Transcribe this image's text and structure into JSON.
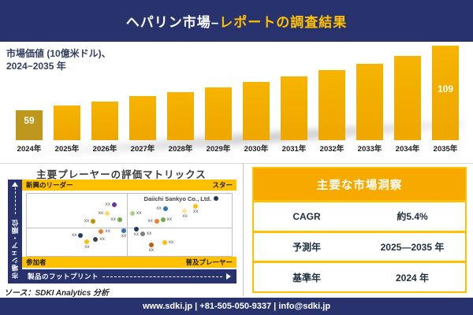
{
  "header": {
    "title_white": "ヘパリン市場–",
    "title_gold": "レポートの調査結果"
  },
  "chart": {
    "caption_line1": "市場価値 (10億米ドル)、",
    "caption_line2": "2024−2035 年"
  },
  "chart_data": {
    "type": "bar",
    "title": "市場価値 (10億米ドル)、2024−2035 年",
    "unit": "10億米ドル",
    "categories": [
      "2024年",
      "2025年",
      "2026年",
      "2027年",
      "2028年",
      "2029年",
      "2030年",
      "2031年",
      "2032年",
      "2033年",
      "2034年",
      "2035年"
    ],
    "values": [
      59,
      63,
      66,
      70,
      73,
      77,
      81,
      85,
      90,
      95,
      101,
      109
    ],
    "labeled_values": {
      "2024年": "59",
      "2035年": "109"
    },
    "value_label_indices": [
      0,
      11
    ],
    "ylim": [
      36,
      112
    ],
    "grid": false,
    "legend": false,
    "bar_color": "#EFA800",
    "first_bar_color": "#BE981C"
  },
  "matrix": {
    "title": "主要プレーヤーの評価マトリックス",
    "quadrants": {
      "top_left": "新興のリーダー",
      "top_right": "スター",
      "bottom_left": "参加者",
      "bottom_right": "普及プレーヤー"
    },
    "x_axis_label": "製品のフットプリント",
    "y_axis_label": "市場シェア・順位",
    "highlighted_company": "Daiichi Sankyo Co., Ltd.",
    "placeholder_label": "xx",
    "points": [
      {
        "x": 42.7,
        "y": 18,
        "color": "#7030A0",
        "label_pos": "left"
      },
      {
        "x": 39.3,
        "y": 32,
        "color": "#FFD966",
        "label_pos": "left"
      },
      {
        "x": 32.4,
        "y": 44,
        "color": "#BF8F00",
        "label_pos": "left"
      },
      {
        "x": 45.4,
        "y": 42,
        "color": "#70AD47",
        "label_pos": "left"
      },
      {
        "x": 36.3,
        "y": 61,
        "color": "#ED7D31",
        "label_pos": "right"
      },
      {
        "x": 47.3,
        "y": 60,
        "color": "#2E75B6",
        "label_pos": "below"
      },
      {
        "x": 26.3,
        "y": 67,
        "color": "#1F3864",
        "label_pos": "left"
      },
      {
        "x": 33.6,
        "y": 74,
        "color": "#404040",
        "label_pos": "right"
      },
      {
        "x": 29.4,
        "y": 77,
        "color": "#FFC000",
        "label_pos": "below"
      },
      {
        "x": 92.4,
        "y": 8,
        "color": "#1F3864",
        "label_pos": "none"
      },
      {
        "x": 82.4,
        "y": 20,
        "color": "#FFC000",
        "label_pos": "below"
      },
      {
        "x": 67.6,
        "y": 24,
        "color": "#2E75B6",
        "label_pos": "left"
      },
      {
        "x": 77.1,
        "y": 28,
        "color": "#FFE699",
        "label_pos": "below"
      },
      {
        "x": 51.5,
        "y": 32,
        "color": "#A9D18E",
        "label_pos": "right"
      },
      {
        "x": 63.4,
        "y": 44,
        "color": "#ED7D31",
        "label_pos": "left"
      },
      {
        "x": 66.4,
        "y": 42,
        "color": "#70AD47",
        "label_pos": "right"
      },
      {
        "x": 53.4,
        "y": 57,
        "color": "#1F3864",
        "label_pos": "below"
      },
      {
        "x": 56.5,
        "y": 65,
        "color": "#7F7F7F",
        "label_pos": "right"
      },
      {
        "x": 60.7,
        "y": 82,
        "color": "#C55A11",
        "label_pos": "below"
      },
      {
        "x": 67.2,
        "y": 78,
        "color": "#FFC000",
        "label_pos": "right"
      }
    ]
  },
  "insights": {
    "title": "主要な市場洞察",
    "rows": [
      {
        "label": "CAGR",
        "value": "約5.4%"
      },
      {
        "label": "予測年",
        "value": "2025—2035 年"
      },
      {
        "label": "基準年",
        "value": "2024 年"
      }
    ]
  },
  "source_note": "ソース：SDKI Analytics 分析",
  "footer": {
    "text": "www.sdki.jp | +81-505-050-9337 | info@sdki.jp"
  },
  "colors": {
    "navy": "#28336E",
    "gold": "#FFC000",
    "amber_header": "#F7A900",
    "bar_gold": "#EFA800",
    "bar_dark_gold": "#BE981C",
    "divider_gray": "#D9D9D9"
  }
}
